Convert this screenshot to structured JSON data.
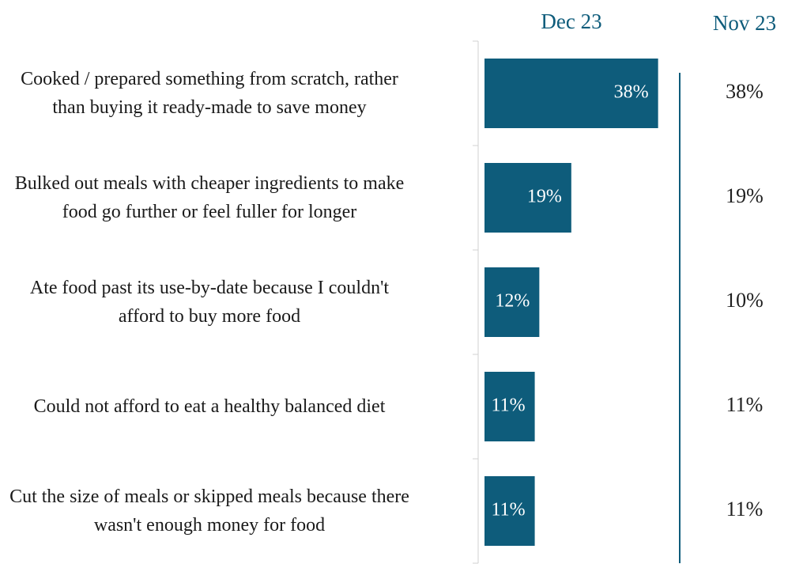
{
  "chart_data": {
    "type": "bar",
    "categories": [
      "Cooked / prepared something from scratch, rather than buying it ready-made to save money",
      "Bulked out meals with cheaper ingredients to make food go further or feel fuller for longer",
      "Ate food past its use-by-date because I couldn't afford to buy more food",
      "Could not afford to eat a healthy balanced diet",
      "Cut the size of meals or skipped meals because there wasn't enough money for food"
    ],
    "series": [
      {
        "name": "Dec 23",
        "color": "#0e5c7b",
        "values": [
          38,
          19,
          12,
          11,
          11
        ],
        "value_labels": [
          "38%",
          "19%",
          "12%",
          "11%",
          "11%"
        ]
      },
      {
        "name": "Nov 23",
        "color": "#1f1f1f",
        "values": [
          38,
          19,
          10,
          11,
          11
        ],
        "value_labels": [
          "38%",
          "19%",
          "10%",
          "11%",
          "11%"
        ]
      }
    ]
  }
}
